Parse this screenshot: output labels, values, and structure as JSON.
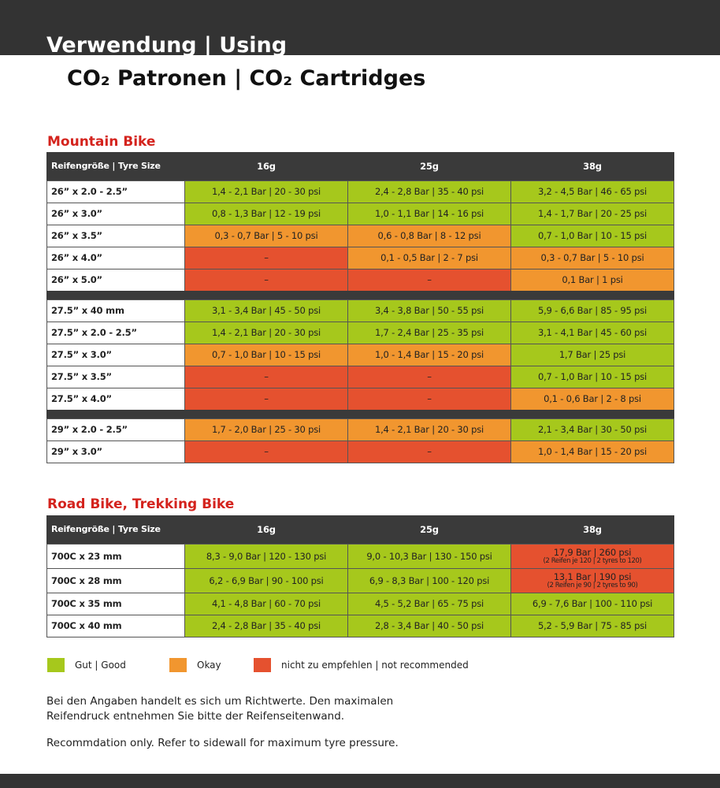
{
  "header": {
    "title": "Verwendung | Using",
    "subtitle": "CO₂ Patronen | CO₂ Cartridges"
  },
  "mtb": {
    "title": "Mountain Bike",
    "header": [
      "Reifengröße | Tyre Size",
      "16g",
      "25g",
      "38g"
    ],
    "groups": [
      [
        {
          "size": "26” x 2.0 - 2.5”",
          "cells": [
            {
              "text": "1,4 - 2,1 Bar | 20 - 30 psi",
              "color": "#a6c81c"
            },
            {
              "text": "2,4 - 2,8 Bar | 35 - 40 psi",
              "color": "#a6c81c"
            },
            {
              "text": "3,2 - 4,5 Bar | 46 - 65 psi",
              "color": "#a6c81c"
            }
          ]
        },
        {
          "size": "26” x 3.0”",
          "cells": [
            {
              "text": "0,8 - 1,3 Bar | 12 - 19 psi",
              "color": "#a6c81c"
            },
            {
              "text": "1,0 - 1,1 Bar | 14 - 16 psi",
              "color": "#a6c81c"
            },
            {
              "text": "1,4 - 1,7 Bar | 20 - 25 psi",
              "color": "#a6c81c"
            }
          ]
        },
        {
          "size": "26” x 3.5”",
          "cells": [
            {
              "text": "0,3 - 0,7 Bar | 5 - 10 psi",
              "color": "#f1962f"
            },
            {
              "text": "0,6 - 0,8 Bar | 8 - 12 psi",
              "color": "#f1962f"
            },
            {
              "text": "0,7 - 1,0 Bar | 10 - 15 psi",
              "color": "#a6c81c"
            }
          ]
        },
        {
          "size": "26” x 4.0”",
          "cells": [
            {
              "text": "–",
              "color": "#e5512f"
            },
            {
              "text": "0,1 - 0,5 Bar | 2 - 7 psi",
              "color": "#f1962f"
            },
            {
              "text": "0,3 - 0,7 Bar | 5 - 10 psi",
              "color": "#f1962f"
            }
          ]
        },
        {
          "size": "26” x 5.0”",
          "cells": [
            {
              "text": "–",
              "color": "#e5512f"
            },
            {
              "text": "–",
              "color": "#e5512f"
            },
            {
              "text": "0,1 Bar | 1 psi",
              "color": "#f1962f"
            }
          ]
        }
      ],
      [
        {
          "size": "27.5” x 40 mm",
          "cells": [
            {
              "text": "3,1 - 3,4 Bar | 45 - 50 psi",
              "color": "#a6c81c"
            },
            {
              "text": "3,4 - 3,8 Bar | 50 - 55 psi",
              "color": "#a6c81c"
            },
            {
              "text": "5,9 - 6,6 Bar | 85 - 95 psi",
              "color": "#a6c81c"
            }
          ]
        },
        {
          "size": "27.5” x 2.0 - 2.5”",
          "cells": [
            {
              "text": "1,4 - 2,1 Bar | 20 - 30 psi",
              "color": "#a6c81c"
            },
            {
              "text": "1,7 - 2,4 Bar | 25 - 35 psi",
              "color": "#a6c81c"
            },
            {
              "text": "3,1 - 4,1 Bar | 45 - 60 psi",
              "color": "#a6c81c"
            }
          ]
        },
        {
          "size": "27.5” x 3.0”",
          "cells": [
            {
              "text": "0,7 - 1,0 Bar | 10 - 15 psi",
              "color": "#f1962f"
            },
            {
              "text": "1,0 - 1,4 Bar | 15 - 20 psi",
              "color": "#f1962f"
            },
            {
              "text": "1,7 Bar | 25 psi",
              "color": "#a6c81c"
            }
          ]
        },
        {
          "size": "27.5” x 3.5”",
          "cells": [
            {
              "text": "–",
              "color": "#e5512f"
            },
            {
              "text": "–",
              "color": "#e5512f"
            },
            {
              "text": "0,7 - 1,0 Bar | 10 - 15 psi",
              "color": "#a6c81c"
            }
          ]
        },
        {
          "size": "27.5” x 4.0”",
          "cells": [
            {
              "text": "–",
              "color": "#e5512f"
            },
            {
              "text": "–",
              "color": "#e5512f"
            },
            {
              "text": "0,1 - 0,6 Bar | 2 - 8 psi",
              "color": "#f1962f"
            }
          ]
        }
      ],
      [
        {
          "size": "29” x 2.0 - 2.5”",
          "cells": [
            {
              "text": "1,7 - 2,0 Bar | 25 - 30 psi",
              "color": "#f1962f"
            },
            {
              "text": "1,4 - 2,1 Bar | 20 - 30 psi",
              "color": "#f1962f"
            },
            {
              "text": "2,1 - 3,4 Bar | 30 - 50 psi",
              "color": "#a6c81c"
            }
          ]
        },
        {
          "size": "29” x 3.0”",
          "cells": [
            {
              "text": "–",
              "color": "#e5512f"
            },
            {
              "text": "–",
              "color": "#e5512f"
            },
            {
              "text": "1,0 - 1,4 Bar | 15 - 20 psi",
              "color": "#f1962f"
            }
          ]
        }
      ]
    ]
  },
  "road": {
    "title": "Road Bike, Trekking Bike",
    "header": [
      "Reifengröße | Tyre Size",
      "16g",
      "25g",
      "38g"
    ],
    "groups": [
      [
        {
          "size": "700C x 23 mm",
          "cells": [
            {
              "text": "8,3 - 9,0 Bar | 120 - 130 psi",
              "color": "#a6c81c"
            },
            {
              "text": "9,0 - 10,3 Bar | 130 - 150 psi",
              "color": "#a6c81c"
            },
            {
              "text": "17,9 Bar | 260 psi",
              "note": "(2 Reifen je 120 | 2 tyres to 120)",
              "color": "#e5512f"
            }
          ]
        },
        {
          "size": "700C x 28 mm",
          "cells": [
            {
              "text": "6,2 - 6,9 Bar | 90 - 100 psi",
              "color": "#a6c81c"
            },
            {
              "text": "6,9 - 8,3 Bar | 100 - 120 psi",
              "color": "#a6c81c"
            },
            {
              "text": "13,1 Bar | 190 psi",
              "note": "(2 Reifen je 90 | 2 tyres to 90)",
              "color": "#e5512f"
            }
          ]
        },
        {
          "size": "700C x 35 mm",
          "cells": [
            {
              "text": "4,1 - 4,8 Bar | 60 - 70 psi",
              "color": "#a6c81c"
            },
            {
              "text": "4,5 - 5,2 Bar | 65 - 75 psi",
              "color": "#a6c81c"
            },
            {
              "text": "6,9 - 7,6 Bar | 100 - 110 psi",
              "color": "#a6c81c"
            }
          ]
        },
        {
          "size": "700C x 40 mm",
          "cells": [
            {
              "text": "2,4 - 2,8 Bar | 35 - 40 psi",
              "color": "#a6c81c"
            },
            {
              "text": "2,8 - 3,4 Bar | 40 - 50 psi",
              "color": "#a6c81c"
            },
            {
              "text": "5,2 - 5,9 Bar | 75 - 85 psi",
              "color": "#a6c81c"
            }
          ]
        }
      ]
    ]
  },
  "legend": [
    {
      "label": "Gut | Good",
      "color": "#a6c81c"
    },
    {
      "label": "Okay",
      "color": "#f1962f"
    },
    {
      "label": "nicht zu empfehlen | not recommended",
      "color": "#e5512f"
    }
  ],
  "notes": [
    "Bei den Angaben handelt es sich um Richtwerte. Den maximalen Reifendruck entnehmen Sie bitte der Reifenseitenwand.",
    "Recommdation only. Refer to sidewall for maximum tyre pressure."
  ]
}
